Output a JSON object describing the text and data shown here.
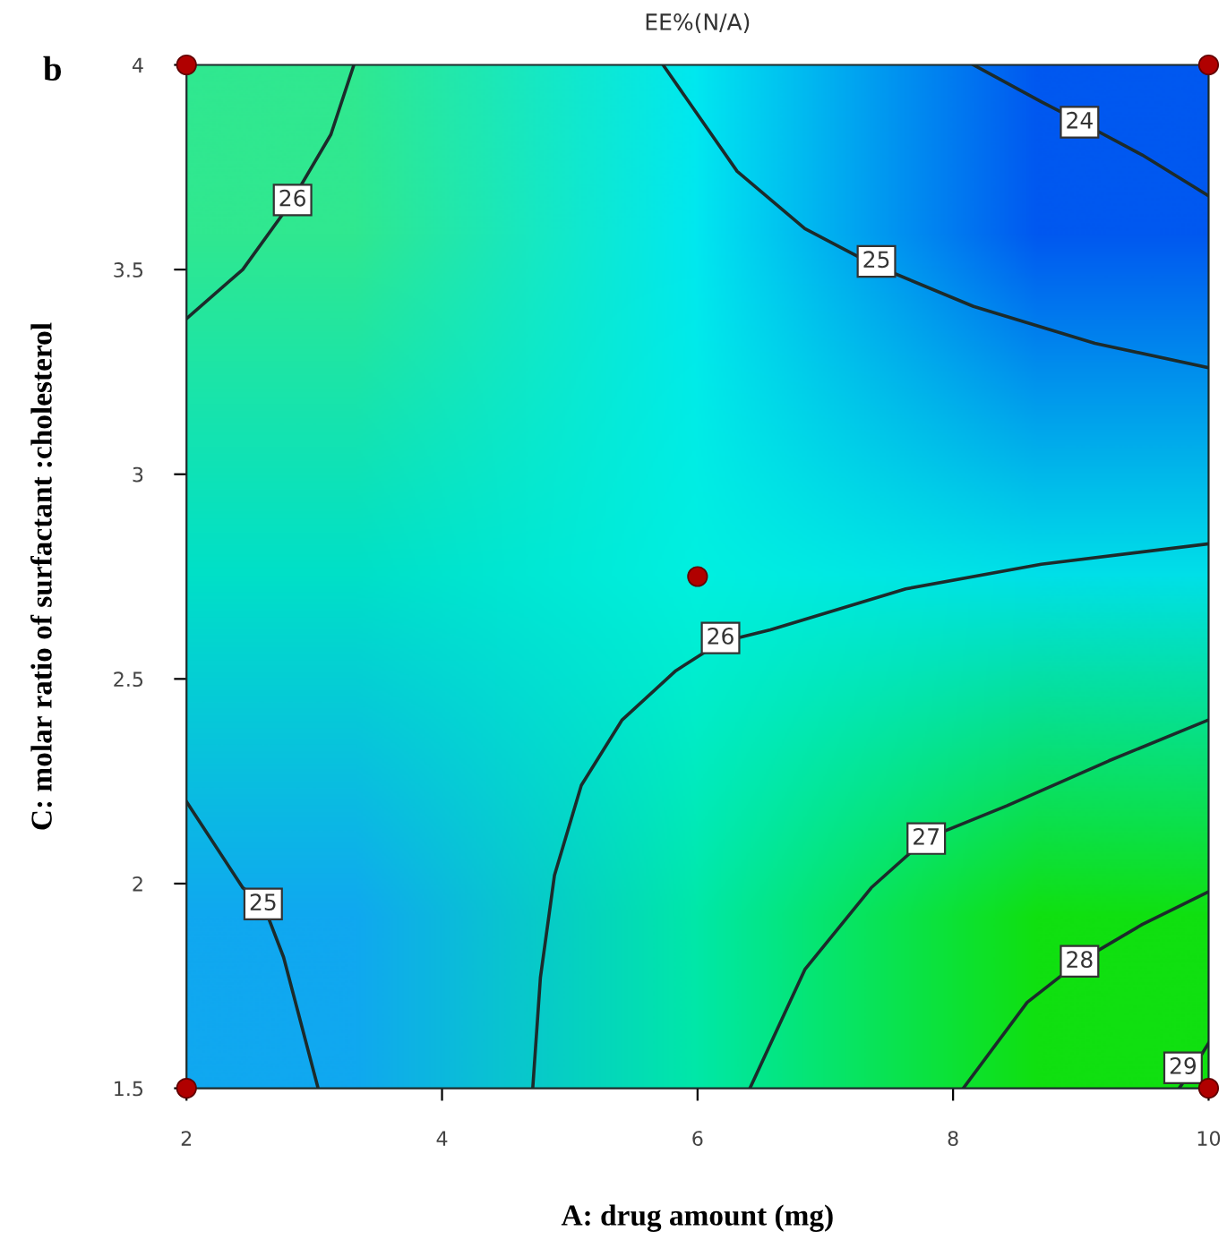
{
  "chart_data": {
    "type": "line",
    "title": "EE%(N/A)",
    "xlabel": "A: drug amount (mg)",
    "ylabel": "C: molar ratio of surfactant :cholesterol",
    "xlim": [
      2,
      10
    ],
    "ylim": [
      1.5,
      4
    ],
    "xticks": [
      2,
      4,
      6,
      8,
      10
    ],
    "yticks": [
      1.5,
      2,
      2.5,
      3,
      3.5,
      4
    ],
    "grid": false,
    "line_style": "solid",
    "marker": "none",
    "series": [
      {
        "color": "#1c2b2b",
        "x": [
          2.0,
          2.44,
          2.81,
          3.13,
          3.31
        ],
        "values": [
          3.38,
          3.5,
          3.66,
          3.83,
          4.0
        ]
      },
      {
        "color": "#1c2b2b",
        "x": [
          5.73,
          6.31,
          6.84,
          7.39,
          8.16,
          9.11,
          10.0
        ],
        "values": [
          4.0,
          3.74,
          3.6,
          3.51,
          3.41,
          3.32,
          3.26
        ]
      },
      {
        "color": "#1c2b2b",
        "x": [
          8.16,
          8.69,
          9.0,
          9.48,
          10.0
        ],
        "values": [
          4.0,
          3.91,
          3.86,
          3.78,
          3.68
        ]
      },
      {
        "color": "#1c2b2b",
        "x": [
          4.71,
          4.77,
          4.88,
          5.09,
          5.41,
          5.83,
          6.18,
          6.57,
          7.63,
          8.69,
          10.0
        ],
        "values": [
          1.5,
          1.77,
          2.02,
          2.24,
          2.4,
          2.52,
          2.59,
          2.62,
          2.72,
          2.78,
          2.83
        ]
      },
      {
        "color": "#1c2b2b",
        "x": [
          6.41,
          6.84,
          7.36,
          7.79,
          8.42,
          9.22,
          10.0
        ],
        "values": [
          1.5,
          1.79,
          1.99,
          2.11,
          2.19,
          2.3,
          2.4
        ]
      },
      {
        "color": "#1c2b2b",
        "x": [
          8.08,
          8.58,
          8.99,
          9.48,
          10.0
        ],
        "values": [
          1.5,
          1.71,
          1.81,
          1.9,
          1.98
        ]
      },
      {
        "color": "#1c2b2b",
        "x": [
          9.77,
          9.88,
          10.0
        ],
        "values": [
          1.5,
          1.55,
          1.61
        ]
      },
      {
        "color": "#1c2b2b",
        "x": [
          2.0,
          2.44,
          2.6,
          2.76,
          3.03
        ],
        "values": [
          2.2,
          1.99,
          1.95,
          1.82,
          1.5
        ]
      },
      {
        "type": "scatter",
        "marker": "circle",
        "color": "#b00000",
        "x": [
          2,
          10,
          2,
          10,
          6
        ],
        "values": [
          1.5,
          1.5,
          4,
          4,
          2.75
        ]
      }
    ],
    "annotations": [
      "b",
      {
        "text": "26",
        "x": 2.83,
        "y": 3.67
      },
      {
        "text": "25",
        "x": 7.4,
        "y": 3.52
      },
      {
        "text": "24",
        "x": 8.99,
        "y": 3.86
      },
      {
        "text": "26",
        "x": 6.18,
        "y": 2.6
      },
      {
        "text": "27",
        "x": 7.79,
        "y": 2.11
      },
      {
        "text": "28",
        "x": 8.99,
        "y": 1.81
      },
      {
        "text": "29",
        "x": 9.8,
        "y": 1.55
      },
      {
        "text": "25",
        "x": 2.6,
        "y": 1.95
      }
    ]
  }
}
